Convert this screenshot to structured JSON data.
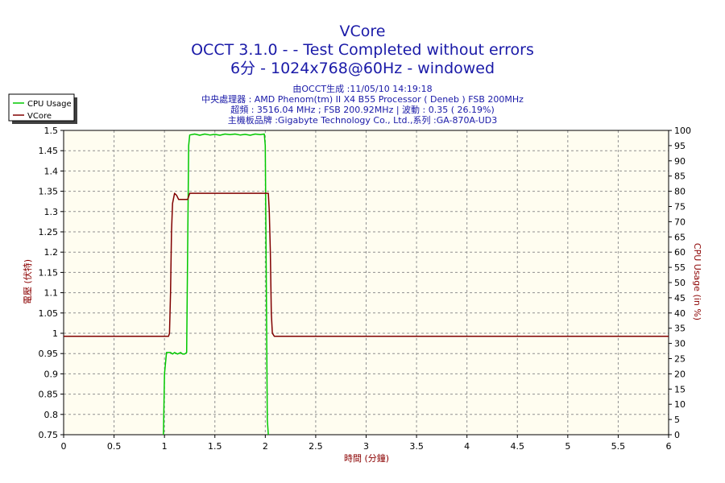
{
  "colors": {
    "title": "#1a1aa8",
    "info": "#1a1aa8",
    "plot_bg": "#fffdf0",
    "grid": "#909090",
    "cpu_series": "#00c800",
    "vcore_series": "#800000",
    "axis_label": "#8b0000"
  },
  "chart_data": {
    "type": "line",
    "title": "VCore",
    "subtitle_lines": [
      "OCCT 3.1.0 -  - Test Completed without errors",
      "6分 - 1024x768@60Hz - windowed"
    ],
    "info_lines": [
      "由OCCT生成 :11/05/10 14:19:18",
      "中央處理器 : AMD Phenom(tm) II X4 B55 Processor ( Deneb ) FSB 200MHz",
      "超頻 : 3516.04 MHz ; FSB 200.92MHz | 波動 : 0.35 ( 26.19%)",
      "主機板品牌 :Gigabyte Technology Co., Ltd.,系列 :GA-870A-UD3"
    ],
    "xlabel": "時間 (分鐘)",
    "ylabel_left": "電壓 (伏特)",
    "ylabel_right": "CPU Usage (in %)",
    "xlim": [
      0,
      6
    ],
    "ylim_left": [
      0.75,
      1.5
    ],
    "ylim_right": [
      0,
      100
    ],
    "x_ticks": [
      "0",
      "0.5",
      "1",
      "1.5",
      "2",
      "2.5",
      "3",
      "3.5",
      "4",
      "4.5",
      "5",
      "5.5",
      "6"
    ],
    "y_left_ticks": [
      "0.75",
      "0.8",
      "0.85",
      "0.9",
      "0.95",
      "1",
      "1.05",
      "1.1",
      "1.15",
      "1.2",
      "1.25",
      "1.3",
      "1.35",
      "1.4",
      "1.45",
      "1.5"
    ],
    "y_right_ticks": [
      "0",
      "5",
      "10",
      "15",
      "20",
      "25",
      "30",
      "35",
      "40",
      "45",
      "50",
      "55",
      "60",
      "65",
      "70",
      "75",
      "80",
      "85",
      "90",
      "95",
      "100"
    ],
    "grid": true,
    "legend_position": "top-left",
    "series": [
      {
        "name": "CPU Usage",
        "axis": "right",
        "color": "#00c800",
        "points": [
          [
            0.99,
            0
          ],
          [
            1.0,
            20
          ],
          [
            1.02,
            27
          ],
          [
            1.03,
            27
          ],
          [
            1.06,
            27
          ],
          [
            1.08,
            26.5
          ],
          [
            1.1,
            27
          ],
          [
            1.13,
            26.5
          ],
          [
            1.16,
            27
          ],
          [
            1.18,
            26.5
          ],
          [
            1.2,
            26.5
          ],
          [
            1.22,
            27
          ],
          [
            1.24,
            95
          ],
          [
            1.25,
            98.5
          ],
          [
            1.3,
            98.8
          ],
          [
            1.35,
            98.4
          ],
          [
            1.4,
            98.8
          ],
          [
            1.45,
            98.5
          ],
          [
            1.5,
            98.7
          ],
          [
            1.55,
            98.4
          ],
          [
            1.6,
            98.8
          ],
          [
            1.65,
            98.6
          ],
          [
            1.7,
            98.8
          ],
          [
            1.75,
            98.5
          ],
          [
            1.8,
            98.7
          ],
          [
            1.85,
            98.4
          ],
          [
            1.9,
            98.8
          ],
          [
            1.95,
            98.6
          ],
          [
            1.99,
            98.8
          ],
          [
            2.0,
            95
          ],
          [
            2.01,
            50
          ],
          [
            2.02,
            5
          ],
          [
            2.03,
            0
          ]
        ]
      },
      {
        "name": "VCore",
        "axis": "left",
        "color": "#800000",
        "points": [
          [
            0,
            0.9925
          ],
          [
            1.04,
            0.9925
          ],
          [
            1.05,
            1.0
          ],
          [
            1.06,
            1.1
          ],
          [
            1.07,
            1.25
          ],
          [
            1.08,
            1.32
          ],
          [
            1.1,
            1.345
          ],
          [
            1.12,
            1.34
          ],
          [
            1.14,
            1.33
          ],
          [
            1.2,
            1.33
          ],
          [
            1.23,
            1.33
          ],
          [
            1.25,
            1.345
          ],
          [
            1.4,
            1.345
          ],
          [
            1.6,
            1.345
          ],
          [
            1.8,
            1.345
          ],
          [
            2.0,
            1.345
          ],
          [
            2.03,
            1.345
          ],
          [
            2.04,
            1.3
          ],
          [
            2.05,
            1.2
          ],
          [
            2.06,
            1.05
          ],
          [
            2.07,
            1.0
          ],
          [
            2.09,
            0.9925
          ],
          [
            6,
            0.9925
          ]
        ]
      }
    ]
  }
}
